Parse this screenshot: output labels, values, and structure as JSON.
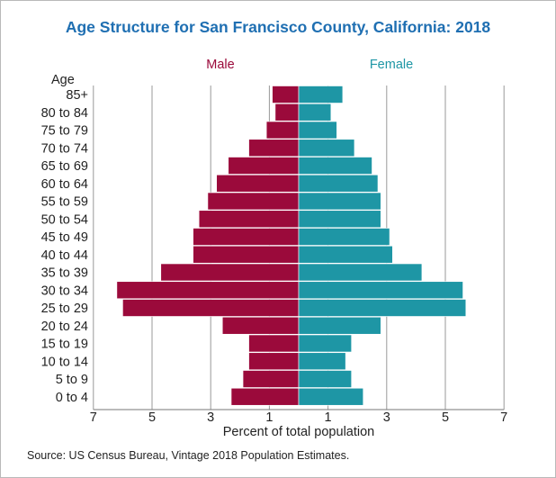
{
  "title": "Age Structure for San Francisco County, California: 2018",
  "source": "Source: US Census Bureau, Vintage 2018 Population Estimates.",
  "colors": {
    "male": "#9b0a3b",
    "female": "#1e96a5",
    "title": "#1f6fb2",
    "grid": "#999999"
  },
  "chart_data": {
    "type": "bar",
    "orientation": "horizontal",
    "title": "Age Structure for San Francisco County, California: 2018",
    "ylabel": "Age",
    "xlabel": "Percent of total population",
    "categories": [
      "85+",
      "80 to 84",
      "75 to 79",
      "70 to 74",
      "65 to 69",
      "60 to 64",
      "55 to 59",
      "50 to 54",
      "45 to 49",
      "40 to 44",
      "35 to 39",
      "30 to 34",
      "25 to 29",
      "20 to 24",
      "15 to 19",
      "10 to 14",
      "5 to 9",
      "0 to 4"
    ],
    "series": [
      {
        "name": "Male",
        "values": [
          0.9,
          0.8,
          1.1,
          1.7,
          2.4,
          2.8,
          3.1,
          3.4,
          3.6,
          3.6,
          4.7,
          6.2,
          6.0,
          2.6,
          1.7,
          1.7,
          1.9,
          2.3
        ]
      },
      {
        "name": "Female",
        "values": [
          1.5,
          1.1,
          1.3,
          1.9,
          2.5,
          2.7,
          2.8,
          2.8,
          3.1,
          3.2,
          4.2,
          5.6,
          5.7,
          2.8,
          1.8,
          1.6,
          1.8,
          2.2
        ]
      }
    ],
    "xticks": [
      "7",
      "5",
      "3",
      "1",
      "1",
      "3",
      "5",
      "7"
    ],
    "xlim": [
      -7,
      7
    ],
    "grid": true,
    "legend": "top"
  }
}
